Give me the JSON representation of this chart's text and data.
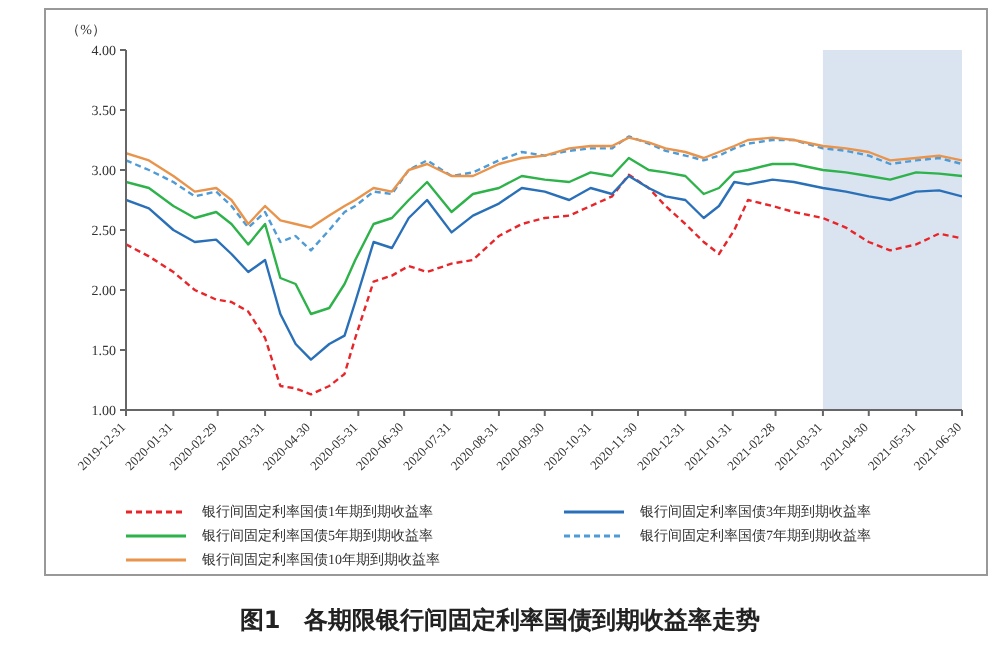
{
  "chart_data": {
    "type": "line",
    "title": "图1　各期限银行间固定利率国债到期收益率走势",
    "ylabel": "（%）",
    "x": [
      "2019-12-31",
      "2020-01-15",
      "2020-01-31",
      "2020-02-14",
      "2020-02-28",
      "2020-03-09",
      "2020-03-20",
      "2020-03-31",
      "2020-04-10",
      "2020-04-20",
      "2020-04-30",
      "2020-05-12",
      "2020-05-22",
      "2020-05-29",
      "2020-06-10",
      "2020-06-22",
      "2020-07-03",
      "2020-07-15",
      "2020-07-31",
      "2020-08-14",
      "2020-08-31",
      "2020-09-15",
      "2020-09-30",
      "2020-10-16",
      "2020-10-30",
      "2020-11-13",
      "2020-11-24",
      "2020-12-07",
      "2020-12-18",
      "2020-12-31",
      "2021-01-12",
      "2021-01-22",
      "2021-02-01",
      "2021-02-10",
      "2021-02-26",
      "2021-03-12",
      "2021-03-31",
      "2021-04-15",
      "2021-04-30",
      "2021-05-14",
      "2021-05-31",
      "2021-06-15",
      "2021-06-30"
    ],
    "series": [
      {
        "name": "银行间固定利率国债1年期到期收益率",
        "color": "#e8262a",
        "line_style": "dashed",
        "values": [
          2.38,
          2.28,
          2.15,
          2.0,
          1.92,
          1.9,
          1.82,
          1.6,
          1.2,
          1.18,
          1.13,
          1.2,
          1.3,
          1.6,
          2.07,
          2.12,
          2.2,
          2.15,
          2.22,
          2.25,
          2.45,
          2.55,
          2.6,
          2.62,
          2.7,
          2.78,
          2.96,
          2.85,
          2.7,
          2.55,
          2.4,
          2.3,
          2.5,
          2.75,
          2.7,
          2.65,
          2.6,
          2.52,
          2.4,
          2.33,
          2.38,
          2.47,
          2.43
        ]
      },
      {
        "name": "银行间固定利率国债3年期到期收益率",
        "color": "#2a70b8",
        "line_style": "solid",
        "values": [
          2.75,
          2.68,
          2.5,
          2.4,
          2.42,
          2.3,
          2.15,
          2.25,
          1.8,
          1.55,
          1.42,
          1.55,
          1.62,
          1.9,
          2.4,
          2.35,
          2.6,
          2.75,
          2.48,
          2.62,
          2.72,
          2.85,
          2.82,
          2.75,
          2.85,
          2.8,
          2.95,
          2.85,
          2.78,
          2.75,
          2.6,
          2.7,
          2.9,
          2.88,
          2.92,
          2.9,
          2.85,
          2.82,
          2.78,
          2.75,
          2.82,
          2.83,
          2.78
        ]
      },
      {
        "name": "银行间固定利率国债5年期到期收益率",
        "color": "#2eb24a",
        "line_style": "solid",
        "values": [
          2.9,
          2.85,
          2.7,
          2.6,
          2.65,
          2.55,
          2.38,
          2.55,
          2.1,
          2.05,
          1.8,
          1.85,
          2.05,
          2.25,
          2.55,
          2.6,
          2.75,
          2.9,
          2.65,
          2.8,
          2.85,
          2.95,
          2.92,
          2.9,
          2.98,
          2.95,
          3.1,
          3.0,
          2.98,
          2.95,
          2.8,
          2.85,
          2.98,
          3.0,
          3.05,
          3.05,
          3.0,
          2.98,
          2.95,
          2.92,
          2.98,
          2.97,
          2.95
        ]
      },
      {
        "name": "银行间固定利率国债7年期到期收益率",
        "color": "#4f9bd6",
        "line_style": "dashed",
        "values": [
          3.08,
          3.0,
          2.9,
          2.78,
          2.82,
          2.7,
          2.52,
          2.65,
          2.4,
          2.45,
          2.33,
          2.5,
          2.65,
          2.7,
          2.82,
          2.8,
          3.0,
          3.08,
          2.95,
          2.98,
          3.08,
          3.15,
          3.12,
          3.16,
          3.18,
          3.18,
          3.28,
          3.22,
          3.16,
          3.12,
          3.08,
          3.12,
          3.18,
          3.22,
          3.25,
          3.25,
          3.18,
          3.16,
          3.12,
          3.05,
          3.08,
          3.1,
          3.05
        ]
      },
      {
        "name": "银行间固定利率国债10年期到期收益率",
        "color": "#e8944c",
        "line_style": "solid",
        "values": [
          3.14,
          3.08,
          2.95,
          2.82,
          2.85,
          2.75,
          2.55,
          2.7,
          2.58,
          2.55,
          2.52,
          2.62,
          2.7,
          2.75,
          2.85,
          2.82,
          3.0,
          3.05,
          2.95,
          2.95,
          3.05,
          3.1,
          3.12,
          3.18,
          3.2,
          3.2,
          3.27,
          3.23,
          3.18,
          3.15,
          3.1,
          3.15,
          3.2,
          3.25,
          3.27,
          3.25,
          3.2,
          3.18,
          3.15,
          3.08,
          3.1,
          3.12,
          3.08
        ]
      }
    ],
    "xlim": [
      "2019-12-31",
      "2021-06-30"
    ],
    "xticks": [
      "2019-12-31",
      "2020-01-31",
      "2020-02-29",
      "2020-03-31",
      "2020-04-30",
      "2020-05-31",
      "2020-06-30",
      "2020-07-31",
      "2020-08-31",
      "2020-09-30",
      "2020-10-31",
      "2020-11-30",
      "2020-12-31",
      "2021-01-31",
      "2021-02-28",
      "2021-03-31",
      "2021-04-30",
      "2021-05-31",
      "2021-06-30"
    ],
    "ylim": [
      1,
      4
    ],
    "yticks": [
      {
        "value": 1,
        "label": "1.00"
      },
      {
        "value": 1.5,
        "label": "1.50"
      },
      {
        "value": 2,
        "label": "2.00"
      },
      {
        "value": 2.5,
        "label": "2.50"
      },
      {
        "value": 3,
        "label": "3.00"
      },
      {
        "value": 3.5,
        "label": "3.50"
      },
      {
        "value": 4,
        "label": "4.00"
      }
    ],
    "bands": [
      {
        "axis": "x",
        "from": "2021-03-31",
        "to": "2021-06-30",
        "color": "#dae3f0"
      }
    ],
    "grid": false,
    "legend": "bottom",
    "marker": "none"
  }
}
